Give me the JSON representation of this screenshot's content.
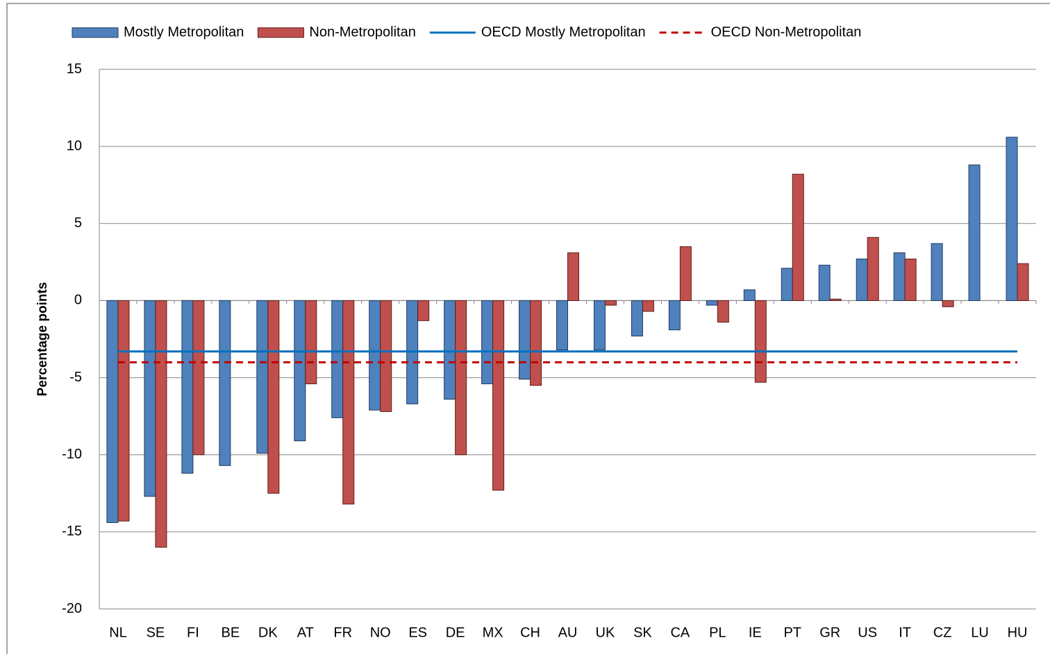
{
  "chart_data": {
    "type": "bar",
    "y_label": "Percentage points",
    "categories": [
      "NL",
      "SE",
      "FI",
      "BE",
      "DK",
      "AT",
      "FR",
      "NO",
      "ES",
      "DE",
      "MX",
      "CH",
      "AU",
      "UK",
      "SK",
      "CA",
      "PL",
      "IE",
      "PT",
      "GR",
      "US",
      "IT",
      "CZ",
      "LU",
      "HU"
    ],
    "series": [
      {
        "name": "Mostly Metropolitan",
        "color": "#4f81bd",
        "values": [
          -14.4,
          -12.7,
          -11.2,
          -10.7,
          -9.9,
          -9.1,
          -7.6,
          -7.1,
          -6.7,
          -6.4,
          -5.4,
          -5.1,
          -3.2,
          -3.2,
          -2.3,
          -1.9,
          -0.3,
          0.7,
          2.1,
          2.3,
          2.7,
          3.1,
          3.7,
          8.8,
          10.6
        ]
      },
      {
        "name": "Non-Metropolitan",
        "color": "#c0504d",
        "values": [
          -14.3,
          -16.0,
          -10.0,
          null,
          -12.5,
          -5.4,
          -13.2,
          -7.2,
          -1.3,
          -10.0,
          -12.3,
          -5.5,
          3.1,
          -0.3,
          -0.7,
          3.5,
          -1.4,
          -5.3,
          8.2,
          0.1,
          4.1,
          2.7,
          -0.4,
          null,
          2.4
        ]
      }
    ],
    "reference_lines": [
      {
        "name": "OECD Mostly Metropolitan",
        "color": "#0070c0",
        "style": "solid",
        "value": -3.3
      },
      {
        "name": "OECD Non-Metropolitan",
        "color": "#c00000",
        "style": "dashed",
        "value": -4.0
      }
    ],
    "ylim": [
      -20,
      15
    ],
    "yticks": [
      -20,
      -15,
      -10,
      -5,
      0,
      5,
      10,
      15
    ],
    "grid": true
  }
}
